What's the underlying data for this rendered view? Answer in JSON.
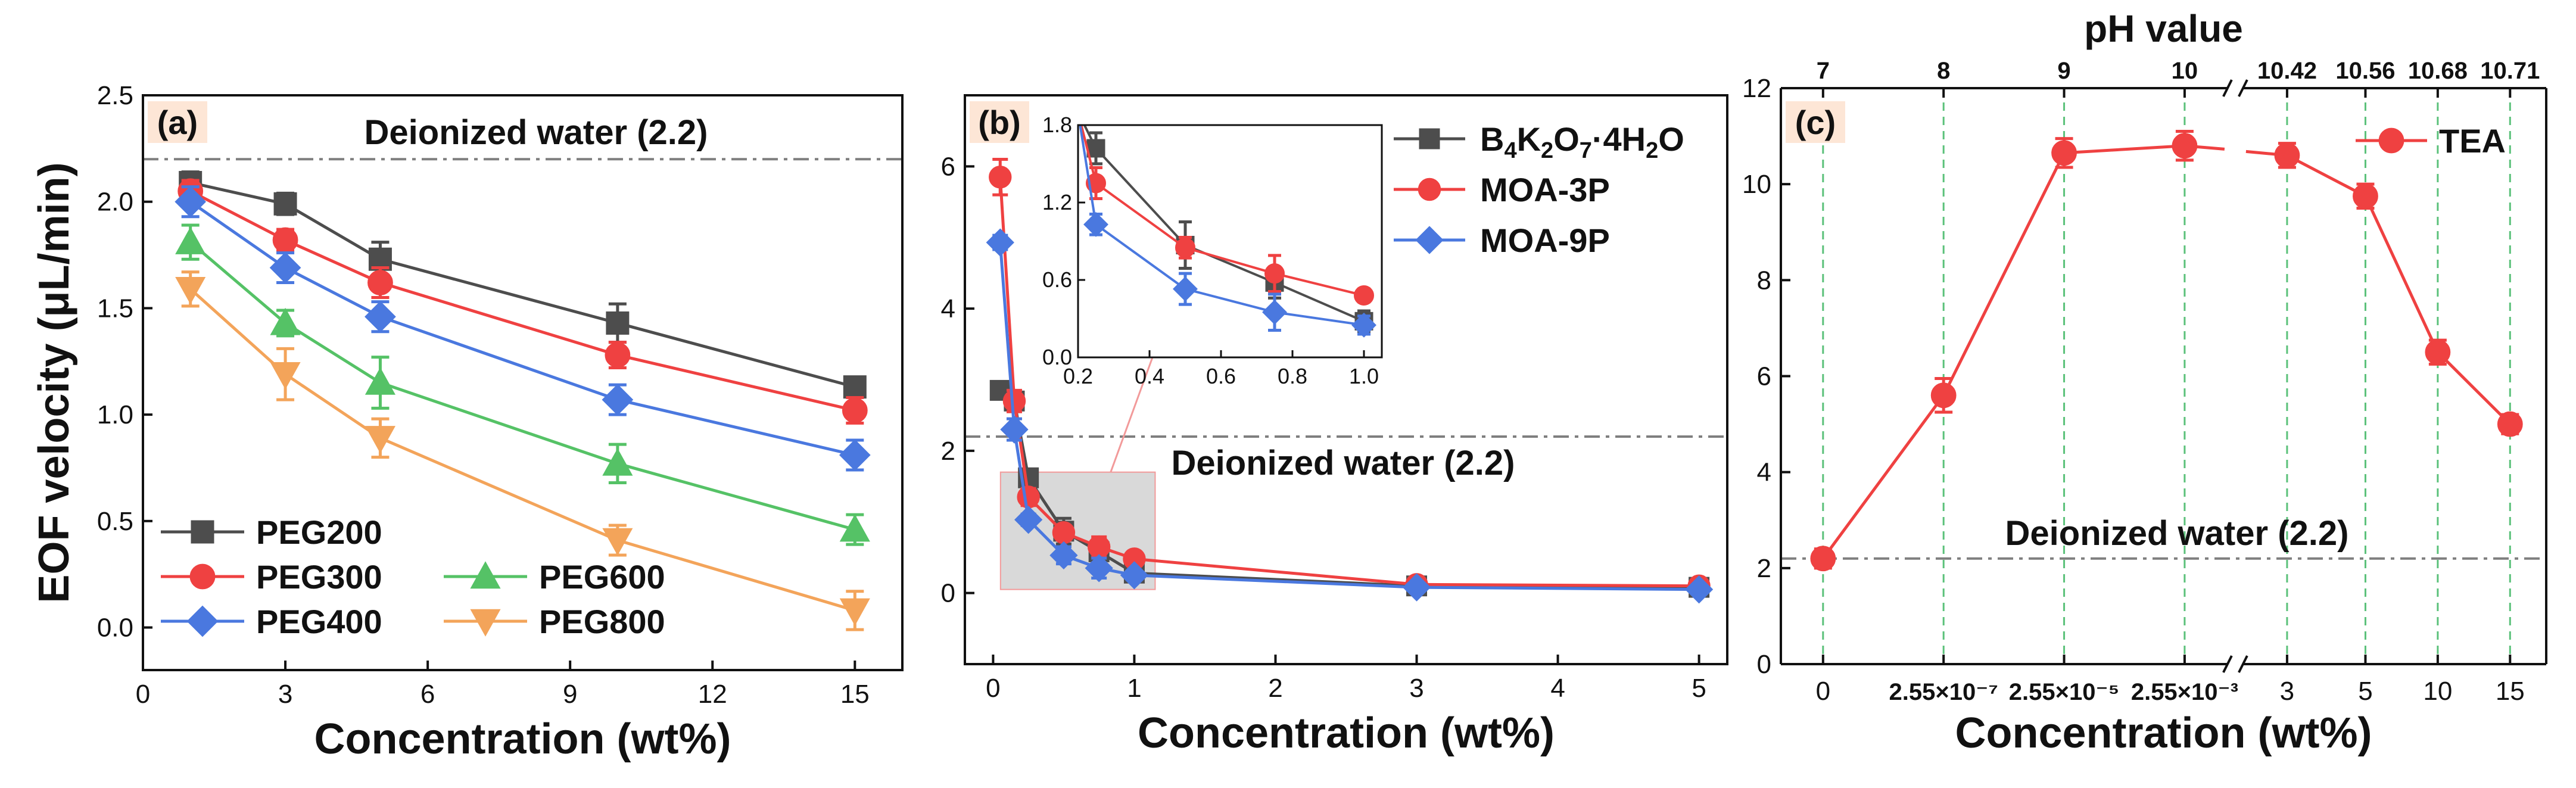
{
  "figure": {
    "ylabel": "EOF velocity (μL/min)",
    "colors": {
      "black": "#4d4d4d",
      "red": "#ef4141",
      "blue": "#4a78df",
      "green": "#55c266",
      "orange": "#f3a45a",
      "ref": "#7f7f7f",
      "vgrid": "#5bc17a",
      "panel_label_bg": "#fde6d6",
      "inset_fill": "#d0d0d0",
      "zoom_edge": "#f29a9a"
    }
  },
  "chart_data": [
    {
      "id": "a",
      "type": "line",
      "panel_label": "(a)",
      "title": "",
      "xlabel": "Concentration (wt%)",
      "ylabel": "EOF velocity (μL/min)",
      "xlim": [
        0,
        16
      ],
      "ylim": [
        -0.2,
        2.5
      ],
      "xticks": [
        0,
        3,
        6,
        9,
        12,
        15
      ],
      "yticks": [
        0.0,
        0.5,
        1.0,
        1.5,
        2.0,
        2.5
      ],
      "x": [
        1,
        3,
        5,
        10,
        15
      ],
      "reference": {
        "value": 2.2,
        "label": "Deionized water (2.2)"
      },
      "series": [
        {
          "name": "PEG200",
          "color": "black",
          "marker": "square",
          "values": [
            2.09,
            1.99,
            1.73,
            1.43,
            1.13
          ],
          "errors": [
            0.05,
            0.05,
            0.08,
            0.09,
            0.04
          ]
        },
        {
          "name": "PEG300",
          "color": "red",
          "marker": "circle",
          "values": [
            2.05,
            1.82,
            1.62,
            1.28,
            1.02
          ],
          "errors": [
            0.05,
            0.05,
            0.07,
            0.06,
            0.06
          ]
        },
        {
          "name": "PEG400",
          "color": "blue",
          "marker": "diamond",
          "values": [
            2.0,
            1.69,
            1.46,
            1.07,
            0.81
          ],
          "errors": [
            0.07,
            0.07,
            0.07,
            0.07,
            0.07
          ]
        },
        {
          "name": "PEG600",
          "color": "green",
          "marker": "triangle-up",
          "values": [
            1.81,
            1.43,
            1.15,
            0.77,
            0.46
          ],
          "errors": [
            0.08,
            0.06,
            0.12,
            0.09,
            0.07
          ]
        },
        {
          "name": "PEG800",
          "color": "orange",
          "marker": "triangle-down",
          "values": [
            1.59,
            1.19,
            0.89,
            0.41,
            0.08
          ],
          "errors": [
            0.08,
            0.12,
            0.09,
            0.07,
            0.09
          ]
        }
      ],
      "legend_order": [
        "PEG200",
        "PEG300",
        "PEG600",
        "PEG400",
        "PEG800"
      ],
      "legend_location": "lower-left"
    },
    {
      "id": "b",
      "type": "line",
      "panel_label": "(b)",
      "title": "",
      "xlabel": "Concentration (wt%)",
      "xlim": [
        -0.2,
        5.2
      ],
      "ylim": [
        -1,
        7
      ],
      "xticks": [
        0,
        1,
        2,
        3,
        4,
        5
      ],
      "yticks": [
        0,
        2,
        4,
        6
      ],
      "reference": {
        "value": 2.2,
        "label": "Deionized water (2.2)"
      },
      "zoom_region": {
        "x": [
          0.2,
          1.0
        ],
        "y": [
          0.05,
          1.7
        ]
      },
      "series": [
        {
          "name": "B4K2O7·4H2O",
          "color": "black",
          "marker": "square",
          "x": [
            0.05,
            0.15,
            0.25,
            0.5,
            0.75,
            1,
            3,
            5
          ],
          "values": [
            2.85,
            2.7,
            1.62,
            0.87,
            0.58,
            0.28,
            0.1,
            0.08
          ],
          "errors": [
            0,
            0,
            0.12,
            0.18,
            0.12,
            0.08,
            0.05,
            0.05
          ]
        },
        {
          "name": "MOA-3P",
          "color": "red",
          "marker": "circle",
          "x": [
            0.05,
            0.15,
            0.25,
            0.5,
            0.75,
            1,
            3,
            5
          ],
          "values": [
            5.85,
            2.7,
            1.35,
            0.85,
            0.65,
            0.48,
            0.12,
            0.1
          ],
          "errors": [
            0.25,
            0.15,
            0.12,
            0.08,
            0.14,
            0.05,
            0.06,
            0.06
          ]
        },
        {
          "name": "MOA-9P",
          "color": "blue",
          "marker": "diamond",
          "x": [
            0.05,
            0.15,
            0.25,
            0.5,
            0.75,
            1,
            3,
            5
          ],
          "values": [
            4.93,
            2.3,
            1.03,
            0.53,
            0.35,
            0.25,
            0.08,
            0.05
          ],
          "errors": [
            0.1,
            0.15,
            0.08,
            0.12,
            0.14,
            0.07,
            0.05,
            0.05
          ]
        }
      ],
      "legend": [
        {
          "main": "B",
          "sub1": "4",
          "mid1": "K",
          "sub2": "2",
          "mid2": "O",
          "sub3": "7",
          "tail": "·4H",
          "sub4": "2",
          "end": "O"
        },
        {
          "main": "MOA-3P"
        },
        {
          "main": "MOA-9P"
        }
      ],
      "inset": {
        "xlim": [
          0.2,
          1.05
        ],
        "ylim": [
          0,
          1.8
        ],
        "xticks": [
          "0.2",
          "0.4",
          "0.6",
          "0.8",
          "1.0"
        ],
        "xtick_values": [
          0.2,
          0.4,
          0.6,
          0.8,
          1.0
        ],
        "yticks": [
          "0.0",
          "0.6",
          "1.2",
          "1.8"
        ],
        "ytick_values": [
          0,
          0.6,
          1.2,
          1.8
        ]
      }
    },
    {
      "id": "c",
      "type": "line",
      "panel_label": "(c)",
      "title": "pH value",
      "xlabel": "Concentration (wt%)",
      "ylim": [
        0,
        12
      ],
      "yticks": [
        0,
        2,
        4,
        6,
        8,
        10,
        12
      ],
      "x_categories": [
        "0",
        "2.55×10⁻⁷",
        "2.55×10⁻⁵",
        "2.55×10⁻³",
        "3",
        "5",
        "10",
        "15"
      ],
      "x_positions": [
        0,
        1,
        2,
        3,
        3.85,
        4.5,
        5.1,
        5.7
      ],
      "x_range": [
        -0.35,
        6.0
      ],
      "top_ticks": [
        "7",
        "8",
        "9",
        "10",
        "10.42",
        "10.56",
        "10.68",
        "10.71"
      ],
      "axis_break_at": 3.42,
      "reference": {
        "value": 2.2,
        "label": "Deionized water (2.2)"
      },
      "series": [
        {
          "name": "TEA",
          "color": "red",
          "marker": "circle",
          "values": [
            2.2,
            5.6,
            10.65,
            10.8,
            10.6,
            9.75,
            6.5,
            5.0
          ],
          "errors": [
            0.2,
            0.35,
            0.3,
            0.3,
            0.25,
            0.25,
            0.25,
            0.2
          ]
        }
      ]
    }
  ]
}
